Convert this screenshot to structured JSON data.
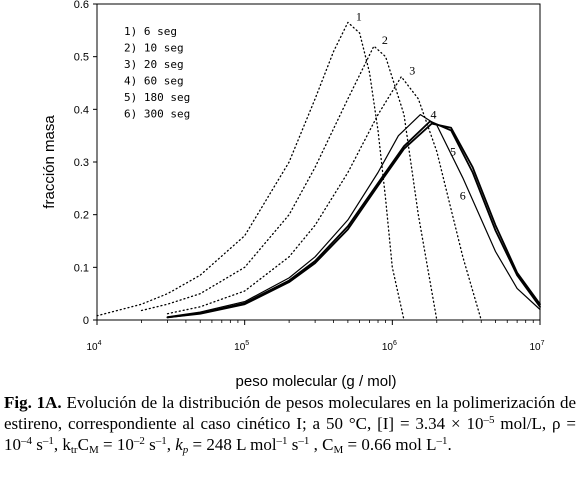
{
  "chart_data": {
    "type": "line",
    "xlabel": "peso molecular (g / mol)",
    "ylabel": "fracción masa",
    "x_scale": "log",
    "xlim": [
      10000,
      10000000
    ],
    "ylim": [
      0,
      0.6
    ],
    "y_ticks": [
      "0",
      "0.1",
      "0.2",
      "0.3",
      "0.4",
      "0.5",
      "0.6"
    ],
    "x_ticks": [
      {
        "base": "10",
        "exp": "4"
      },
      {
        "base": "10",
        "exp": "5"
      },
      {
        "base": "10",
        "exp": "6"
      },
      {
        "base": "10",
        "exp": "7"
      }
    ],
    "legend": [
      "1) 6 seg",
      "2) 10 seg",
      "3) 20 seg",
      "4) 60 seg",
      "5) 180 seg",
      "6) 300 seg"
    ],
    "legend_position": "top-left",
    "series": [
      {
        "label": "1",
        "peak_x": 500000,
        "peak_y": 0.565,
        "points": [
          [
            10000,
            0.008
          ],
          [
            20000,
            0.03
          ],
          [
            30000,
            0.05
          ],
          [
            50000,
            0.085
          ],
          [
            100000,
            0.16
          ],
          [
            200000,
            0.3
          ],
          [
            300000,
            0.42
          ],
          [
            400000,
            0.51
          ],
          [
            500000,
            0.565
          ],
          [
            600000,
            0.545
          ],
          [
            700000,
            0.47
          ],
          [
            800000,
            0.36
          ],
          [
            900000,
            0.23
          ],
          [
            1000000,
            0.1
          ],
          [
            1200000,
            0.0
          ]
        ]
      },
      {
        "label": "2",
        "peak_x": 750000,
        "peak_y": 0.52,
        "points": [
          [
            20000,
            0.018
          ],
          [
            30000,
            0.03
          ],
          [
            50000,
            0.05
          ],
          [
            100000,
            0.1
          ],
          [
            200000,
            0.2
          ],
          [
            300000,
            0.29
          ],
          [
            500000,
            0.42
          ],
          [
            750000,
            0.52
          ],
          [
            900000,
            0.5
          ],
          [
            1200000,
            0.39
          ],
          [
            1500000,
            0.2
          ],
          [
            2000000,
            0.0
          ]
        ]
      },
      {
        "label": "3",
        "peak_x": 1150000,
        "peak_y": 0.462,
        "points": [
          [
            30000,
            0.012
          ],
          [
            50000,
            0.025
          ],
          [
            100000,
            0.055
          ],
          [
            200000,
            0.12
          ],
          [
            300000,
            0.18
          ],
          [
            500000,
            0.28
          ],
          [
            800000,
            0.39
          ],
          [
            1150000,
            0.462
          ],
          [
            1500000,
            0.42
          ],
          [
            2000000,
            0.32
          ],
          [
            3000000,
            0.12
          ],
          [
            4000000,
            0.0
          ]
        ]
      },
      {
        "label": "4",
        "peak_x": 1550000,
        "peak_y": 0.39,
        "points": [
          [
            30000,
            0.006
          ],
          [
            50000,
            0.015
          ],
          [
            100000,
            0.035
          ],
          [
            200000,
            0.08
          ],
          [
            300000,
            0.12
          ],
          [
            500000,
            0.19
          ],
          [
            800000,
            0.28
          ],
          [
            1100000,
            0.35
          ],
          [
            1550000,
            0.39
          ],
          [
            2000000,
            0.37
          ],
          [
            3000000,
            0.27
          ],
          [
            5000000,
            0.13
          ],
          [
            7000000,
            0.06
          ],
          [
            10000000,
            0.02
          ]
        ]
      },
      {
        "label": "5",
        "peak_x": 1800000,
        "peak_y": 0.377,
        "points": [
          [
            30000,
            0.005
          ],
          [
            50000,
            0.013
          ],
          [
            100000,
            0.032
          ],
          [
            200000,
            0.075
          ],
          [
            300000,
            0.112
          ],
          [
            500000,
            0.178
          ],
          [
            800000,
            0.26
          ],
          [
            1200000,
            0.33
          ],
          [
            1800000,
            0.377
          ],
          [
            2500000,
            0.36
          ],
          [
            3500000,
            0.28
          ],
          [
            5000000,
            0.17
          ],
          [
            7000000,
            0.085
          ],
          [
            10000000,
            0.025
          ]
        ]
      },
      {
        "label": "6",
        "peak_x": 1850000,
        "peak_y": 0.373,
        "points": [
          [
            30000,
            0.005
          ],
          [
            50000,
            0.012
          ],
          [
            100000,
            0.03
          ],
          [
            200000,
            0.072
          ],
          [
            300000,
            0.108
          ],
          [
            500000,
            0.172
          ],
          [
            800000,
            0.255
          ],
          [
            1200000,
            0.325
          ],
          [
            1850000,
            0.373
          ],
          [
            2500000,
            0.365
          ],
          [
            3500000,
            0.29
          ],
          [
            5000000,
            0.18
          ],
          [
            7000000,
            0.09
          ],
          [
            10000000,
            0.03
          ]
        ]
      }
    ]
  },
  "caption": {
    "label": "Fig. 1A.",
    "text": "Evolución de la distribución de pesos moleculares en la polimerización de estireno, correspondiente al caso cinético I; a 50 °C, [I] = 3.34 × 10",
    "exp1": "–5",
    "t2": " mol/L, ρ = 10",
    "exp2": "–4",
    "t3": " s",
    "exp3": "–1",
    "t4": ", k",
    "sub1": "tr",
    "t5": "C",
    "sub2": "M",
    "t6": " = 10",
    "exp4": "–2",
    "t7": " s",
    "exp5": "–1",
    "t8": ", ",
    "kp_k": "k",
    "kp_sub": "p",
    "t9": " = 248 L mol",
    "exp6": "–1",
    "t10": " s",
    "exp7": "–1",
    "t11": " , C",
    "sub3": "M",
    "t12": " = 0.66 mol L",
    "exp8": "–1",
    "t13": "."
  }
}
